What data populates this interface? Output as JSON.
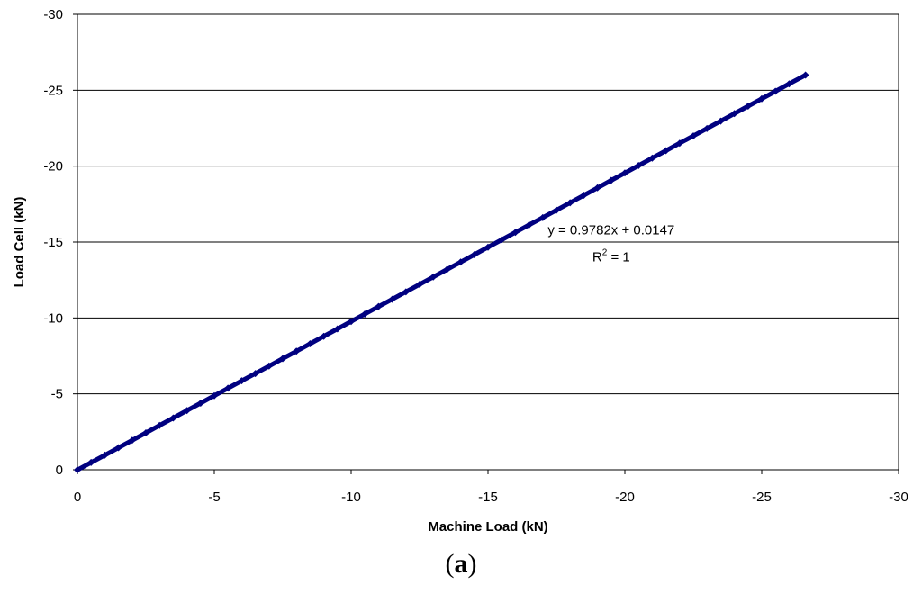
{
  "chart_data": {
    "type": "scatter",
    "title": "",
    "xlabel": "Machine Load (kN)",
    "ylabel": "Load Cell (kN)",
    "xlim": [
      0,
      -30
    ],
    "ylim": [
      0,
      -30
    ],
    "x_ticks": [
      0,
      -5,
      -10,
      -15,
      -20,
      -25,
      -30
    ],
    "y_ticks": [
      0,
      -5,
      -10,
      -15,
      -20,
      -25,
      -30
    ],
    "x_tick_labels": [
      "0",
      "-5",
      "-10",
      "-15",
      "-20",
      "-25",
      "-30"
    ],
    "y_tick_labels": [
      "0",
      "-5",
      "-10",
      "-15",
      "-20",
      "-25",
      "-30"
    ],
    "grid": "horizontal",
    "series": [
      {
        "color": "#000080",
        "marker": "diamond",
        "x_start": 0,
        "x_end": -26.6,
        "x": [
          0,
          -0.5,
          -1,
          -1.5,
          -2,
          -2.5,
          -3,
          -3.5,
          -4,
          -4.5,
          -5,
          -5.5,
          -6,
          -6.5,
          -7,
          -7.5,
          -8,
          -8.5,
          -9,
          -9.5,
          -10,
          -10.5,
          -11,
          -11.5,
          -12,
          -12.5,
          -13,
          -13.5,
          -14,
          -14.5,
          -15,
          -15.5,
          -16,
          -16.5,
          -17,
          -17.5,
          -18,
          -18.5,
          -19,
          -19.5,
          -20,
          -20.5,
          -21,
          -21.5,
          -22,
          -22.5,
          -23,
          -23.5,
          -24,
          -24.5,
          -25,
          -25.5,
          -26,
          -26.6
        ],
        "y": [
          0.01,
          -0.48,
          -0.96,
          -1.45,
          -1.94,
          -2.43,
          -2.92,
          -3.41,
          -3.9,
          -4.39,
          -4.88,
          -5.37,
          -5.86,
          -6.34,
          -6.83,
          -7.32,
          -7.81,
          -8.3,
          -8.79,
          -9.28,
          -9.77,
          -10.26,
          -10.75,
          -11.23,
          -11.72,
          -12.21,
          -12.7,
          -13.19,
          -13.68,
          -14.17,
          -14.66,
          -15.15,
          -15.64,
          -16.13,
          -16.61,
          -17.1,
          -17.59,
          -18.08,
          -18.57,
          -19.06,
          -19.55,
          -20.04,
          -20.53,
          -21.02,
          -21.51,
          -21.99,
          -22.48,
          -22.97,
          -23.46,
          -23.95,
          -24.44,
          -24.93,
          -25.42,
          -26.0
        ]
      }
    ],
    "trendline": {
      "equation": "y = 0.9782x + 0.0147",
      "r_squared_prefix": "R",
      "r_squared_sup": "2",
      "r_squared_suffix": " = 1",
      "anchor_x": -19.5,
      "anchor_y": -15.5
    }
  },
  "caption": {
    "open": "(",
    "letter": "a",
    "close": ")"
  },
  "colors": {
    "series": "#000080",
    "axis": "#000000",
    "grid": "#000000"
  }
}
